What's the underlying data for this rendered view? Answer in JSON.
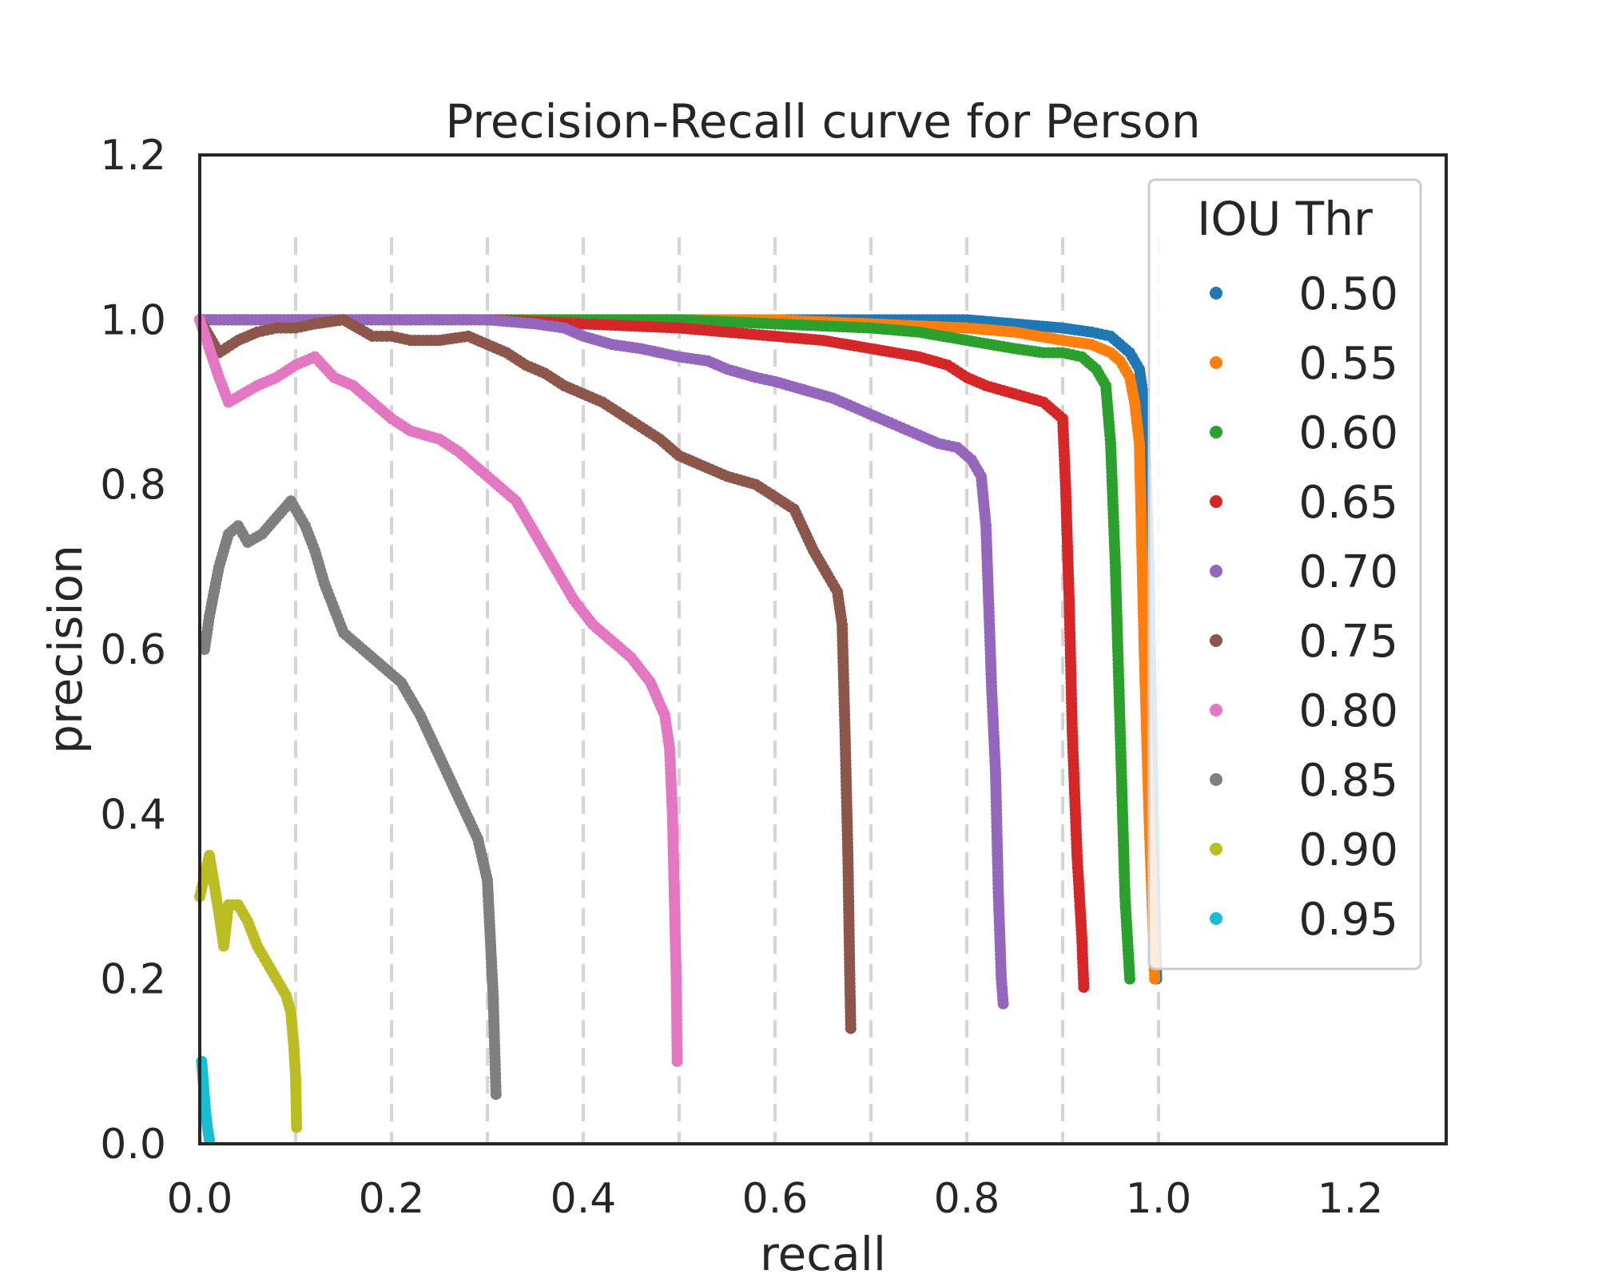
{
  "chart_data": {
    "type": "scatter",
    "title": "Precision-Recall curve for Person",
    "xlabel": "recall",
    "ylabel": "precision",
    "xlim": [
      0.0,
      1.3
    ],
    "ylim": [
      0.0,
      1.2
    ],
    "xticks": [
      "0.0",
      "0.2",
      "0.4",
      "0.6",
      "0.8",
      "1.0",
      "1.2"
    ],
    "yticks": [
      "0.0",
      "0.2",
      "0.4",
      "0.6",
      "0.8",
      "1.0",
      "1.2"
    ],
    "grid": "vertical dashed lines at recall 0.1 to 1.0, y from 0 to 1.1",
    "legend": {
      "title": "IOU Thr",
      "placement": "top-right"
    },
    "series": [
      {
        "name": "0.50",
        "color": "#1f77b4",
        "points": [
          [
            0.0,
            1.0
          ],
          [
            0.1,
            1.0
          ],
          [
            0.2,
            1.0
          ],
          [
            0.3,
            1.0
          ],
          [
            0.4,
            1.0
          ],
          [
            0.5,
            1.0
          ],
          [
            0.6,
            1.0
          ],
          [
            0.7,
            1.0
          ],
          [
            0.8,
            1.0
          ],
          [
            0.85,
            0.995
          ],
          [
            0.9,
            0.99
          ],
          [
            0.93,
            0.985
          ],
          [
            0.95,
            0.98
          ],
          [
            0.96,
            0.97
          ],
          [
            0.97,
            0.96
          ],
          [
            0.98,
            0.94
          ],
          [
            0.985,
            0.9
          ],
          [
            0.99,
            0.7
          ],
          [
            0.993,
            0.5
          ],
          [
            0.996,
            0.3
          ],
          [
            0.998,
            0.2
          ]
        ]
      },
      {
        "name": "0.55",
        "color": "#ff7f0e",
        "points": [
          [
            0.0,
            1.0
          ],
          [
            0.2,
            1.0
          ],
          [
            0.4,
            1.0
          ],
          [
            0.6,
            1.0
          ],
          [
            0.7,
            0.995
          ],
          [
            0.8,
            0.99
          ],
          [
            0.85,
            0.985
          ],
          [
            0.9,
            0.975
          ],
          [
            0.93,
            0.97
          ],
          [
            0.95,
            0.96
          ],
          [
            0.96,
            0.95
          ],
          [
            0.97,
            0.93
          ],
          [
            0.975,
            0.9
          ],
          [
            0.98,
            0.85
          ],
          [
            0.985,
            0.6
          ],
          [
            0.99,
            0.4
          ],
          [
            0.993,
            0.3
          ],
          [
            0.996,
            0.2
          ]
        ]
      },
      {
        "name": "0.60",
        "color": "#2ca02c",
        "points": [
          [
            0.0,
            1.0
          ],
          [
            0.2,
            1.0
          ],
          [
            0.4,
            1.0
          ],
          [
            0.5,
            1.0
          ],
          [
            0.6,
            0.995
          ],
          [
            0.7,
            0.99
          ],
          [
            0.75,
            0.985
          ],
          [
            0.8,
            0.975
          ],
          [
            0.85,
            0.965
          ],
          [
            0.88,
            0.96
          ],
          [
            0.9,
            0.96
          ],
          [
            0.92,
            0.955
          ],
          [
            0.935,
            0.94
          ],
          [
            0.945,
            0.92
          ],
          [
            0.95,
            0.85
          ],
          [
            0.955,
            0.7
          ],
          [
            0.96,
            0.5
          ],
          [
            0.965,
            0.3
          ],
          [
            0.97,
            0.2
          ]
        ]
      },
      {
        "name": "0.65",
        "color": "#d62728",
        "points": [
          [
            0.0,
            1.0
          ],
          [
            0.2,
            1.0
          ],
          [
            0.3,
            1.0
          ],
          [
            0.4,
            0.995
          ],
          [
            0.5,
            0.99
          ],
          [
            0.55,
            0.985
          ],
          [
            0.6,
            0.98
          ],
          [
            0.65,
            0.975
          ],
          [
            0.7,
            0.965
          ],
          [
            0.75,
            0.955
          ],
          [
            0.78,
            0.945
          ],
          [
            0.8,
            0.93
          ],
          [
            0.82,
            0.92
          ],
          [
            0.85,
            0.91
          ],
          [
            0.88,
            0.9
          ],
          [
            0.9,
            0.88
          ],
          [
            0.903,
            0.8
          ],
          [
            0.907,
            0.65
          ],
          [
            0.91,
            0.5
          ],
          [
            0.915,
            0.35
          ],
          [
            0.92,
            0.25
          ],
          [
            0.922,
            0.19
          ]
        ]
      },
      {
        "name": "0.70",
        "color": "#9467bd",
        "points": [
          [
            0.0,
            1.0
          ],
          [
            0.1,
            1.0
          ],
          [
            0.2,
            1.0
          ],
          [
            0.3,
            1.0
          ],
          [
            0.35,
            0.995
          ],
          [
            0.38,
            0.99
          ],
          [
            0.4,
            0.98
          ],
          [
            0.43,
            0.97
          ],
          [
            0.46,
            0.965
          ],
          [
            0.5,
            0.955
          ],
          [
            0.53,
            0.95
          ],
          [
            0.55,
            0.94
          ],
          [
            0.58,
            0.93
          ],
          [
            0.6,
            0.925
          ],
          [
            0.63,
            0.915
          ],
          [
            0.66,
            0.905
          ],
          [
            0.69,
            0.89
          ],
          [
            0.72,
            0.875
          ],
          [
            0.75,
            0.86
          ],
          [
            0.77,
            0.85
          ],
          [
            0.79,
            0.845
          ],
          [
            0.805,
            0.83
          ],
          [
            0.815,
            0.81
          ],
          [
            0.82,
            0.75
          ],
          [
            0.823,
            0.65
          ],
          [
            0.826,
            0.55
          ],
          [
            0.83,
            0.45
          ],
          [
            0.833,
            0.3
          ],
          [
            0.836,
            0.2
          ],
          [
            0.838,
            0.17
          ]
        ]
      },
      {
        "name": "0.75",
        "color": "#8c564b",
        "points": [
          [
            0.0,
            1.0
          ],
          [
            0.02,
            0.96
          ],
          [
            0.04,
            0.975
          ],
          [
            0.06,
            0.985
          ],
          [
            0.08,
            0.99
          ],
          [
            0.1,
            0.99
          ],
          [
            0.12,
            0.995
          ],
          [
            0.15,
            1.0
          ],
          [
            0.18,
            0.98
          ],
          [
            0.2,
            0.98
          ],
          [
            0.22,
            0.975
          ],
          [
            0.25,
            0.975
          ],
          [
            0.28,
            0.98
          ],
          [
            0.3,
            0.97
          ],
          [
            0.32,
            0.96
          ],
          [
            0.34,
            0.945
          ],
          [
            0.36,
            0.935
          ],
          [
            0.38,
            0.92
          ],
          [
            0.4,
            0.91
          ],
          [
            0.42,
            0.9
          ],
          [
            0.44,
            0.885
          ],
          [
            0.46,
            0.87
          ],
          [
            0.48,
            0.855
          ],
          [
            0.5,
            0.835
          ],
          [
            0.52,
            0.825
          ],
          [
            0.55,
            0.81
          ],
          [
            0.58,
            0.8
          ],
          [
            0.6,
            0.785
          ],
          [
            0.62,
            0.77
          ],
          [
            0.64,
            0.72
          ],
          [
            0.655,
            0.69
          ],
          [
            0.665,
            0.67
          ],
          [
            0.67,
            0.63
          ],
          [
            0.673,
            0.5
          ],
          [
            0.676,
            0.35
          ],
          [
            0.678,
            0.2
          ],
          [
            0.679,
            0.14
          ]
        ]
      },
      {
        "name": "0.80",
        "color": "#e377c2",
        "points": [
          [
            0.0,
            1.0
          ],
          [
            0.02,
            0.93
          ],
          [
            0.03,
            0.9
          ],
          [
            0.045,
            0.91
          ],
          [
            0.06,
            0.92
          ],
          [
            0.08,
            0.93
          ],
          [
            0.1,
            0.945
          ],
          [
            0.12,
            0.955
          ],
          [
            0.14,
            0.93
          ],
          [
            0.16,
            0.92
          ],
          [
            0.18,
            0.9
          ],
          [
            0.2,
            0.88
          ],
          [
            0.22,
            0.865
          ],
          [
            0.25,
            0.855
          ],
          [
            0.27,
            0.84
          ],
          [
            0.29,
            0.82
          ],
          [
            0.31,
            0.8
          ],
          [
            0.33,
            0.78
          ],
          [
            0.35,
            0.74
          ],
          [
            0.37,
            0.7
          ],
          [
            0.39,
            0.66
          ],
          [
            0.41,
            0.63
          ],
          [
            0.43,
            0.61
          ],
          [
            0.45,
            0.59
          ],
          [
            0.47,
            0.56
          ],
          [
            0.485,
            0.52
          ],
          [
            0.49,
            0.48
          ],
          [
            0.493,
            0.4
          ],
          [
            0.495,
            0.3
          ],
          [
            0.497,
            0.2
          ],
          [
            0.498,
            0.1
          ]
        ]
      },
      {
        "name": "0.85",
        "color": "#7f7f7f",
        "points": [
          [
            0.005,
            0.6
          ],
          [
            0.01,
            0.64
          ],
          [
            0.02,
            0.7
          ],
          [
            0.03,
            0.74
          ],
          [
            0.04,
            0.75
          ],
          [
            0.05,
            0.73
          ],
          [
            0.065,
            0.74
          ],
          [
            0.08,
            0.76
          ],
          [
            0.095,
            0.78
          ],
          [
            0.1,
            0.77
          ],
          [
            0.11,
            0.75
          ],
          [
            0.12,
            0.72
          ],
          [
            0.13,
            0.68
          ],
          [
            0.14,
            0.65
          ],
          [
            0.15,
            0.62
          ],
          [
            0.17,
            0.6
          ],
          [
            0.19,
            0.58
          ],
          [
            0.21,
            0.56
          ],
          [
            0.23,
            0.52
          ],
          [
            0.25,
            0.47
          ],
          [
            0.27,
            0.42
          ],
          [
            0.29,
            0.37
          ],
          [
            0.3,
            0.32
          ],
          [
            0.303,
            0.25
          ],
          [
            0.306,
            0.18
          ],
          [
            0.308,
            0.1
          ],
          [
            0.309,
            0.06
          ]
        ]
      },
      {
        "name": "0.90",
        "color": "#bcbd22",
        "points": [
          [
            0.0,
            0.3
          ],
          [
            0.01,
            0.35
          ],
          [
            0.02,
            0.28
          ],
          [
            0.025,
            0.24
          ],
          [
            0.03,
            0.29
          ],
          [
            0.04,
            0.29
          ],
          [
            0.05,
            0.27
          ],
          [
            0.06,
            0.24
          ],
          [
            0.07,
            0.22
          ],
          [
            0.08,
            0.2
          ],
          [
            0.09,
            0.18
          ],
          [
            0.095,
            0.16
          ],
          [
            0.098,
            0.12
          ],
          [
            0.1,
            0.08
          ],
          [
            0.101,
            0.02
          ]
        ]
      },
      {
        "name": "0.95",
        "color": "#17becf",
        "points": [
          [
            0.002,
            0.1
          ],
          [
            0.004,
            0.07
          ],
          [
            0.006,
            0.04
          ],
          [
            0.008,
            0.02
          ],
          [
            0.01,
            0.005
          ]
        ]
      }
    ]
  }
}
